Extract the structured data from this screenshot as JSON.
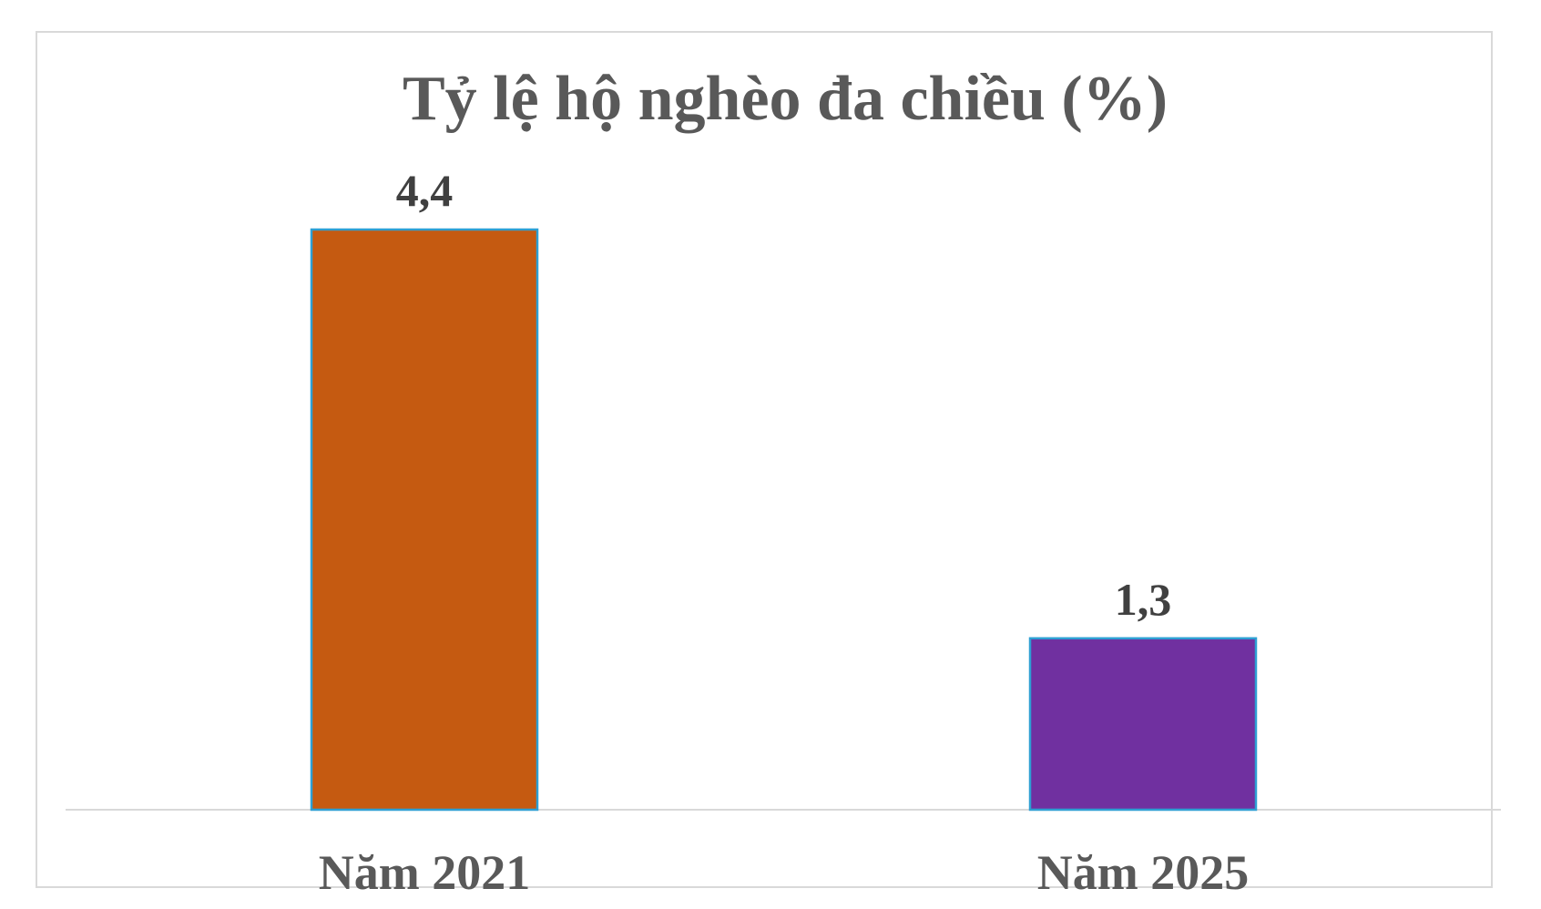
{
  "chart_data": {
    "type": "bar",
    "title": "Tỷ lệ hộ nghèo đa chiều (%)",
    "categories": [
      "Năm 2021",
      "Năm 2025"
    ],
    "values": [
      4.4,
      1.3
    ],
    "data_labels": [
      "4,4",
      "1,3"
    ],
    "bar_colors": [
      "#c55a11",
      "#7030a0"
    ],
    "bar_outline_color": "#2e9fd3",
    "ylim": [
      0,
      4.4
    ],
    "grid": false,
    "legend": "none",
    "xlabel": "",
    "ylabel": ""
  }
}
